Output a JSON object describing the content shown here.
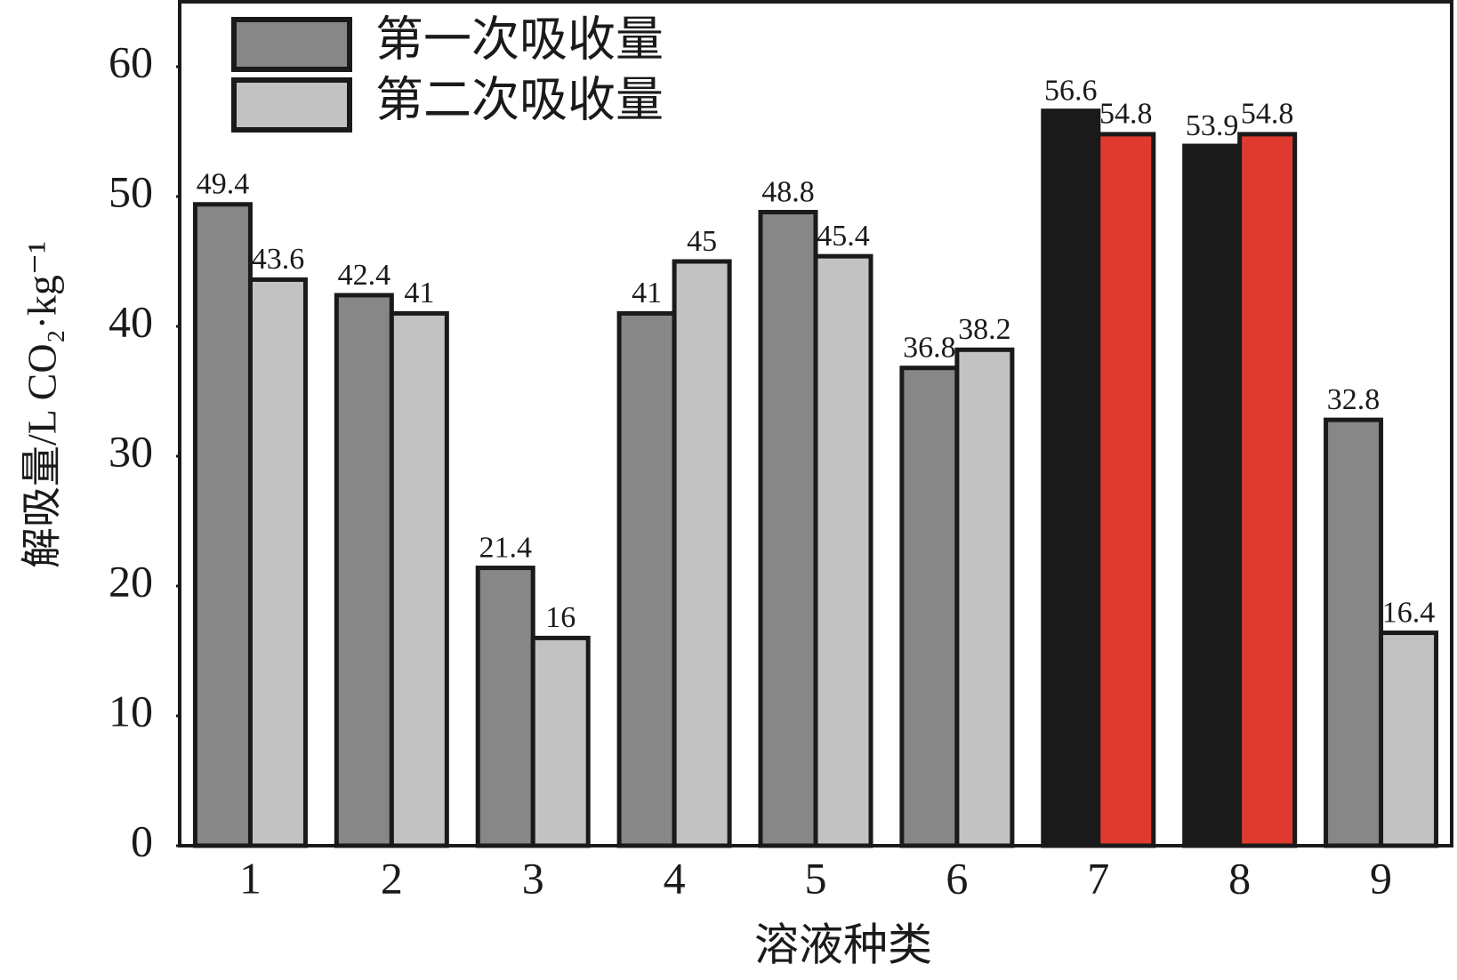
{
  "chart_data": {
    "type": "bar",
    "x_label": "溶液种类",
    "y_label": "解吸量/L CO₂·kg⁻¹",
    "categories": [
      "1",
      "2",
      "3",
      "4",
      "5",
      "6",
      "7",
      "8",
      "9"
    ],
    "series": [
      {
        "name": "第一次吸收量",
        "color": "#878787",
        "values": [
          49.4,
          42.4,
          21.4,
          41,
          48.8,
          36.8,
          56.6,
          53.9,
          32.8
        ],
        "point_colors": [
          "#878787",
          "#878787",
          "#878787",
          "#878787",
          "#878787",
          "#878787",
          "#1a1a1a",
          "#1a1a1a",
          "#878787"
        ],
        "label_colors": [
          "#1a1a1a",
          "#1a1a1a",
          "#1a1a1a",
          "#1a1a1a",
          "#1a1a1a",
          "#1a1a1a",
          "#e03a30",
          "#e03a30",
          "#1a1a1a"
        ]
      },
      {
        "name": "第二次吸收量",
        "color": "#c2c2c2",
        "values": [
          43.6,
          41,
          16,
          45,
          45.4,
          38.2,
          54.8,
          54.8,
          16.4
        ],
        "point_colors": [
          "#c2c2c2",
          "#c2c2c2",
          "#c2c2c2",
          "#c2c2c2",
          "#c2c2c2",
          "#c2c2c2",
          "#e03a30",
          "#e03a30",
          "#c2c2c2"
        ],
        "label_colors": [
          "#1a1a1a",
          "#1a1a1a",
          "#1a1a1a",
          "#1a1a1a",
          "#1a1a1a",
          "#1a1a1a",
          "#e03a30",
          "#e03a30",
          "#1a1a1a"
        ]
      }
    ],
    "ylim": [
      0,
      65
    ],
    "yticks": [
      0,
      10,
      20,
      30,
      40,
      50,
      60
    ],
    "grid": false,
    "legend": "upper left"
  }
}
